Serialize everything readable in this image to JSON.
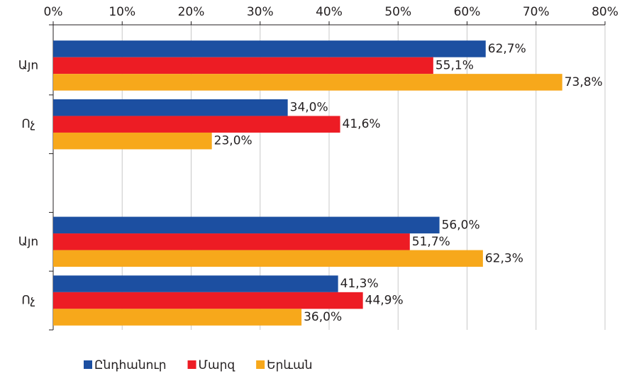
{
  "chart_data": {
    "type": "hbar",
    "categories": [
      "Այո",
      "Ոչ",
      null,
      "Այո",
      "Ոչ"
    ],
    "series": [
      {
        "name": "Ընդհանուր",
        "color": "#1c4fa1",
        "values": [
          62.7,
          34.0,
          null,
          56.0,
          41.3
        ],
        "value_labels": [
          "62,7%",
          "34,0%",
          null,
          "56,0%",
          "41,3%"
        ]
      },
      {
        "name": "Մարզ",
        "color": "#ed1c24",
        "values": [
          55.1,
          41.6,
          null,
          51.7,
          44.9
        ],
        "value_labels": [
          "55,1%",
          "41,6%",
          null,
          "51,7%",
          "44,9%"
        ]
      },
      {
        "name": "Երևան",
        "color": "#f7a81b",
        "values": [
          73.8,
          23.0,
          null,
          62.3,
          36.0
        ],
        "value_labels": [
          "73,8%",
          "23,0%",
          null,
          "62,3%",
          "36,0%"
        ]
      }
    ],
    "xlim": [
      0,
      80
    ],
    "xticks": [
      {
        "value": 0,
        "label": "0%"
      },
      {
        "value": 10,
        "label": "10%"
      },
      {
        "value": 20,
        "label": "20%"
      },
      {
        "value": 30,
        "label": "30%"
      },
      {
        "value": 40,
        "label": "40%"
      },
      {
        "value": 50,
        "label": "50%"
      },
      {
        "value": 60,
        "label": "60%"
      },
      {
        "value": 70,
        "label": "70%"
      },
      {
        "value": 80,
        "label": "80%"
      }
    ],
    "grid": true,
    "legend": "bottom"
  }
}
